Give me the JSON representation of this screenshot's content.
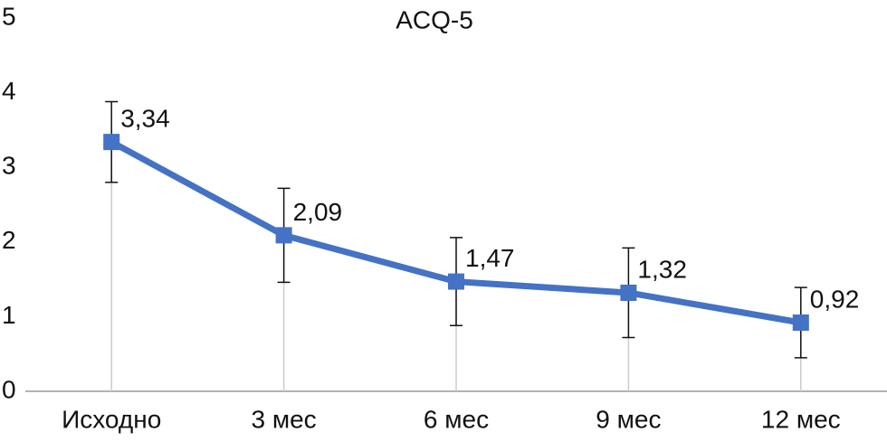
{
  "chart_data": {
    "type": "line",
    "title": "ACQ-5",
    "categories": [
      "Исходно",
      "3 мес",
      "6 мес",
      "9 мес",
      "12 мес"
    ],
    "values": [
      3.34,
      2.09,
      1.47,
      1.32,
      0.92
    ],
    "value_labels": [
      "3,34",
      "2,09",
      "1,47",
      "1,32",
      "0,92"
    ],
    "errors": [
      0.54,
      0.63,
      0.59,
      0.6,
      0.47
    ],
    "color": "#4472c4",
    "ylim": [
      0,
      5
    ],
    "yticks": [
      0,
      1,
      2,
      3,
      4,
      5
    ],
    "grid": false
  }
}
